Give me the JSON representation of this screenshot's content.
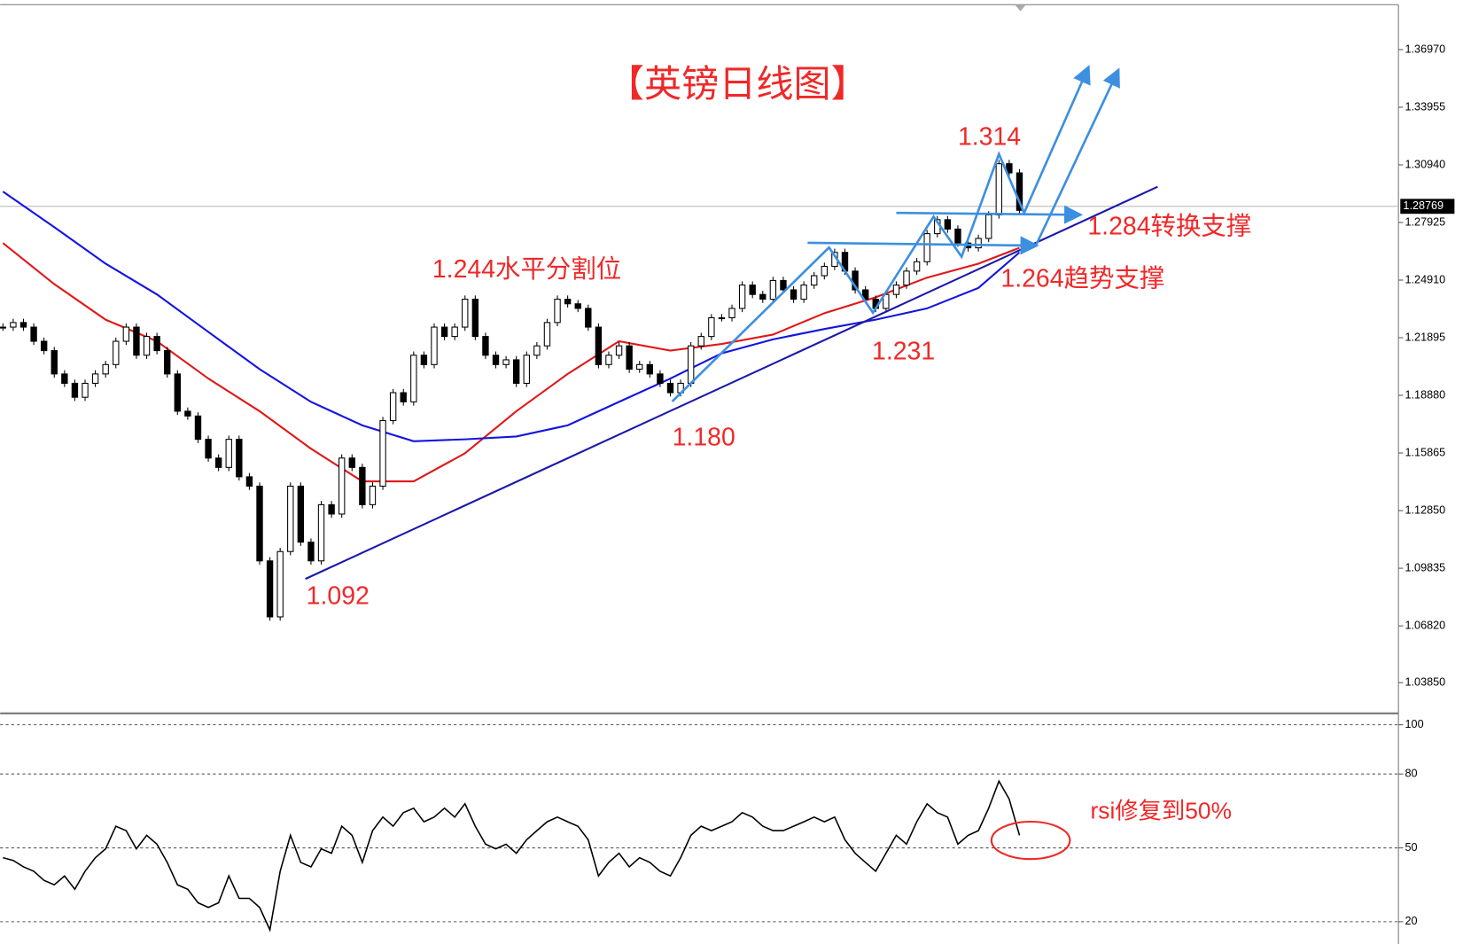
{
  "chart_data": [
    {
      "type": "candlestick",
      "title": "【英镑日线图】",
      "series": [
        {
          "color": "#000000",
          "values": [
            1.2245,
            1.2269,
            1.2245,
            1.2171,
            1.2122,
            1.2,
            1.1951,
            1.1878,
            1.1951,
            1.2,
            1.2049,
            1.2171,
            1.2245,
            1.2098,
            1.2196,
            1.2122,
            1.2,
            1.1805,
            1.178,
            1.1658,
            1.156,
            1.1511,
            1.1658,
            1.1462,
            1.1413,
            1.1022,
            1.0729,
            1.1071,
            1.1413,
            1.112,
            1.1022,
            1.1316,
            1.1267,
            1.156,
            1.1511,
            1.1316,
            1.1413,
            1.1756,
            1.1902,
            1.1854,
            1.2098,
            1.2049,
            1.2245,
            1.2196,
            1.2245,
            1.2391,
            1.2196,
            1.2098,
            1.2049,
            1.2074,
            1.1951,
            1.2098,
            1.2147,
            1.2269,
            1.2391,
            1.2367,
            1.2343,
            1.2245,
            1.2049,
            1.2098,
            1.2147,
            1.2025,
            1.2049,
            1.2,
            1.1951,
            1.1902,
            1.1951,
            1.2147,
            1.2196,
            1.2294,
            1.2294,
            1.2343,
            1.2465,
            1.2416,
            1.2391,
            1.2489,
            1.244,
            1.2391,
            1.2465,
            1.2514,
            1.2563,
            1.2636,
            1.2538,
            1.244,
            1.2391,
            1.2343,
            1.2416,
            1.2465,
            1.2538,
            1.2587,
            1.2734,
            1.2807,
            1.2758,
            1.2685,
            1.266,
            1.2709,
            1.2832,
            1.31,
            1.3052,
            1.2856
          ]
        }
      ],
      "overlays": [
        {
          "color": "#e01818",
          "x": [
            0,
            5,
            10,
            15,
            20,
            25,
            30,
            35,
            40,
            45,
            50,
            55,
            60,
            65,
            70,
            75,
            80,
            85,
            90,
            95,
            99
          ],
          "values": [
            1.2685,
            1.247,
            1.2284,
            1.2171,
            1.1976,
            1.1805,
            1.1609,
            1.1438,
            1.1438,
            1.1585,
            1.1805,
            1.2,
            1.2171,
            1.2122,
            1.2157,
            1.2206,
            1.2318,
            1.2401,
            1.2504,
            1.2577,
            1.266
          ]
        },
        {
          "color": "#1414e0",
          "x": [
            0,
            5,
            10,
            15,
            20,
            25,
            30,
            35,
            40,
            45,
            50,
            55,
            60,
            65,
            70,
            75,
            80,
            85,
            90,
            95,
            99
          ],
          "values": [
            1.2954,
            1.2768,
            1.2577,
            1.2416,
            1.222,
            1.2025,
            1.1854,
            1.1731,
            1.1648,
            1.1658,
            1.1673,
            1.1731,
            1.1854,
            1.1976,
            1.2108,
            1.2181,
            1.2235,
            1.2284,
            1.2343,
            1.245,
            1.2636
          ]
        }
      ],
      "ylim": [
        1.0234,
        1.3932
      ],
      "yticks": [
        {
          "value": 1.3697,
          "label": "1.36970"
        },
        1.33955,
        {
          "value": 1.3094,
          "label": "1.30940"
        },
        1.27925,
        {
          "value": 1.2491,
          "label": "1.24910"
        },
        1.21895,
        {
          "value": 1.1888,
          "label": "1.18880"
        },
        1.15865,
        {
          "value": 1.1285,
          "label": "1.12850"
        },
        1.09835,
        {
          "value": 1.0682,
          "label": "1.06820"
        },
        {
          "value": 1.0385,
          "label": "1.03850"
        }
      ],
      "last_price": 1.28769,
      "annotations": [
        "1.314",
        "1.284转换支撑",
        "1.244水平分割位",
        "1.264趋势支撑",
        "1.231",
        "1.180",
        "1.092"
      ]
    },
    {
      "type": "line",
      "color": "#000000",
      "values": [
        46.0,
        44.9,
        42.3,
        40.5,
        36.8,
        35.0,
        38.6,
        33.2,
        40.5,
        46.0,
        49.6,
        58.8,
        57.0,
        49.6,
        55.1,
        51.5,
        44.1,
        35.0,
        33.2,
        27.7,
        25.8,
        27.7,
        38.6,
        29.5,
        29.5,
        25.8,
        16.7,
        40.5,
        55.1,
        44.1,
        42.3,
        49.6,
        47.8,
        58.8,
        55.1,
        44.1,
        57.0,
        62.5,
        58.8,
        64.3,
        66.1,
        60.6,
        62.5,
        66.1,
        62.5,
        67.9,
        58.8,
        51.5,
        49.6,
        51.5,
        47.8,
        53.3,
        57.0,
        60.6,
        62.5,
        60.6,
        58.8,
        53.3,
        38.6,
        44.1,
        47.8,
        42.3,
        46.0,
        44.1,
        40.5,
        38.6,
        46.0,
        55.1,
        58.8,
        57.0,
        58.8,
        60.6,
        64.3,
        62.5,
        58.8,
        57.0,
        57.0,
        58.8,
        60.6,
        62.5,
        60.6,
        62.5,
        53.3,
        47.8,
        44.1,
        40.5,
        47.8,
        55.1,
        51.5,
        60.6,
        67.9,
        64.3,
        62.5,
        51.5,
        55.1,
        57.0,
        66.1,
        77.1,
        69.8,
        55.1
      ],
      "ylim": [
        12.1,
        103.1
      ],
      "yticks": [
        100,
        80,
        50,
        20
      ],
      "annotation": "rsi修复到50%"
    }
  ]
}
